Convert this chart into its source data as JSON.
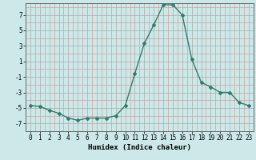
{
  "x": [
    0,
    1,
    2,
    3,
    4,
    5,
    6,
    7,
    8,
    9,
    10,
    11,
    12,
    13,
    14,
    15,
    16,
    17,
    18,
    19,
    20,
    21,
    22,
    23
  ],
  "y": [
    -4.7,
    -4.8,
    -5.3,
    -5.7,
    -6.3,
    -6.6,
    -6.3,
    -6.3,
    -6.3,
    -6.0,
    -4.7,
    -0.6,
    3.3,
    5.7,
    8.3,
    8.3,
    7.0,
    1.3,
    -1.7,
    -2.3,
    -3.0,
    -3.0,
    -4.3,
    -4.7
  ],
  "line_color": "#2e7d6e",
  "marker": "D",
  "marker_size": 2.0,
  "linewidth": 1.0,
  "bg_color": "#cce8e8",
  "grid_color_major": "#aaaaaa",
  "grid_color_pink": "#d4a0a0",
  "xlabel": "Humidex (Indice chaleur)",
  "xlabel_fontsize": 6.5,
  "tick_fontsize": 5.5,
  "yticks": [
    -7,
    -5,
    -3,
    -1,
    1,
    3,
    5,
    7
  ],
  "yticks_minor": [
    -6,
    -4,
    -2,
    0,
    2,
    4,
    6,
    8
  ],
  "xticks": [
    0,
    1,
    2,
    3,
    4,
    5,
    6,
    7,
    8,
    9,
    10,
    11,
    12,
    13,
    14,
    15,
    16,
    17,
    18,
    19,
    20,
    21,
    22,
    23
  ],
  "ylim": [
    -8.0,
    8.5
  ],
  "xlim": [
    -0.5,
    23.5
  ]
}
